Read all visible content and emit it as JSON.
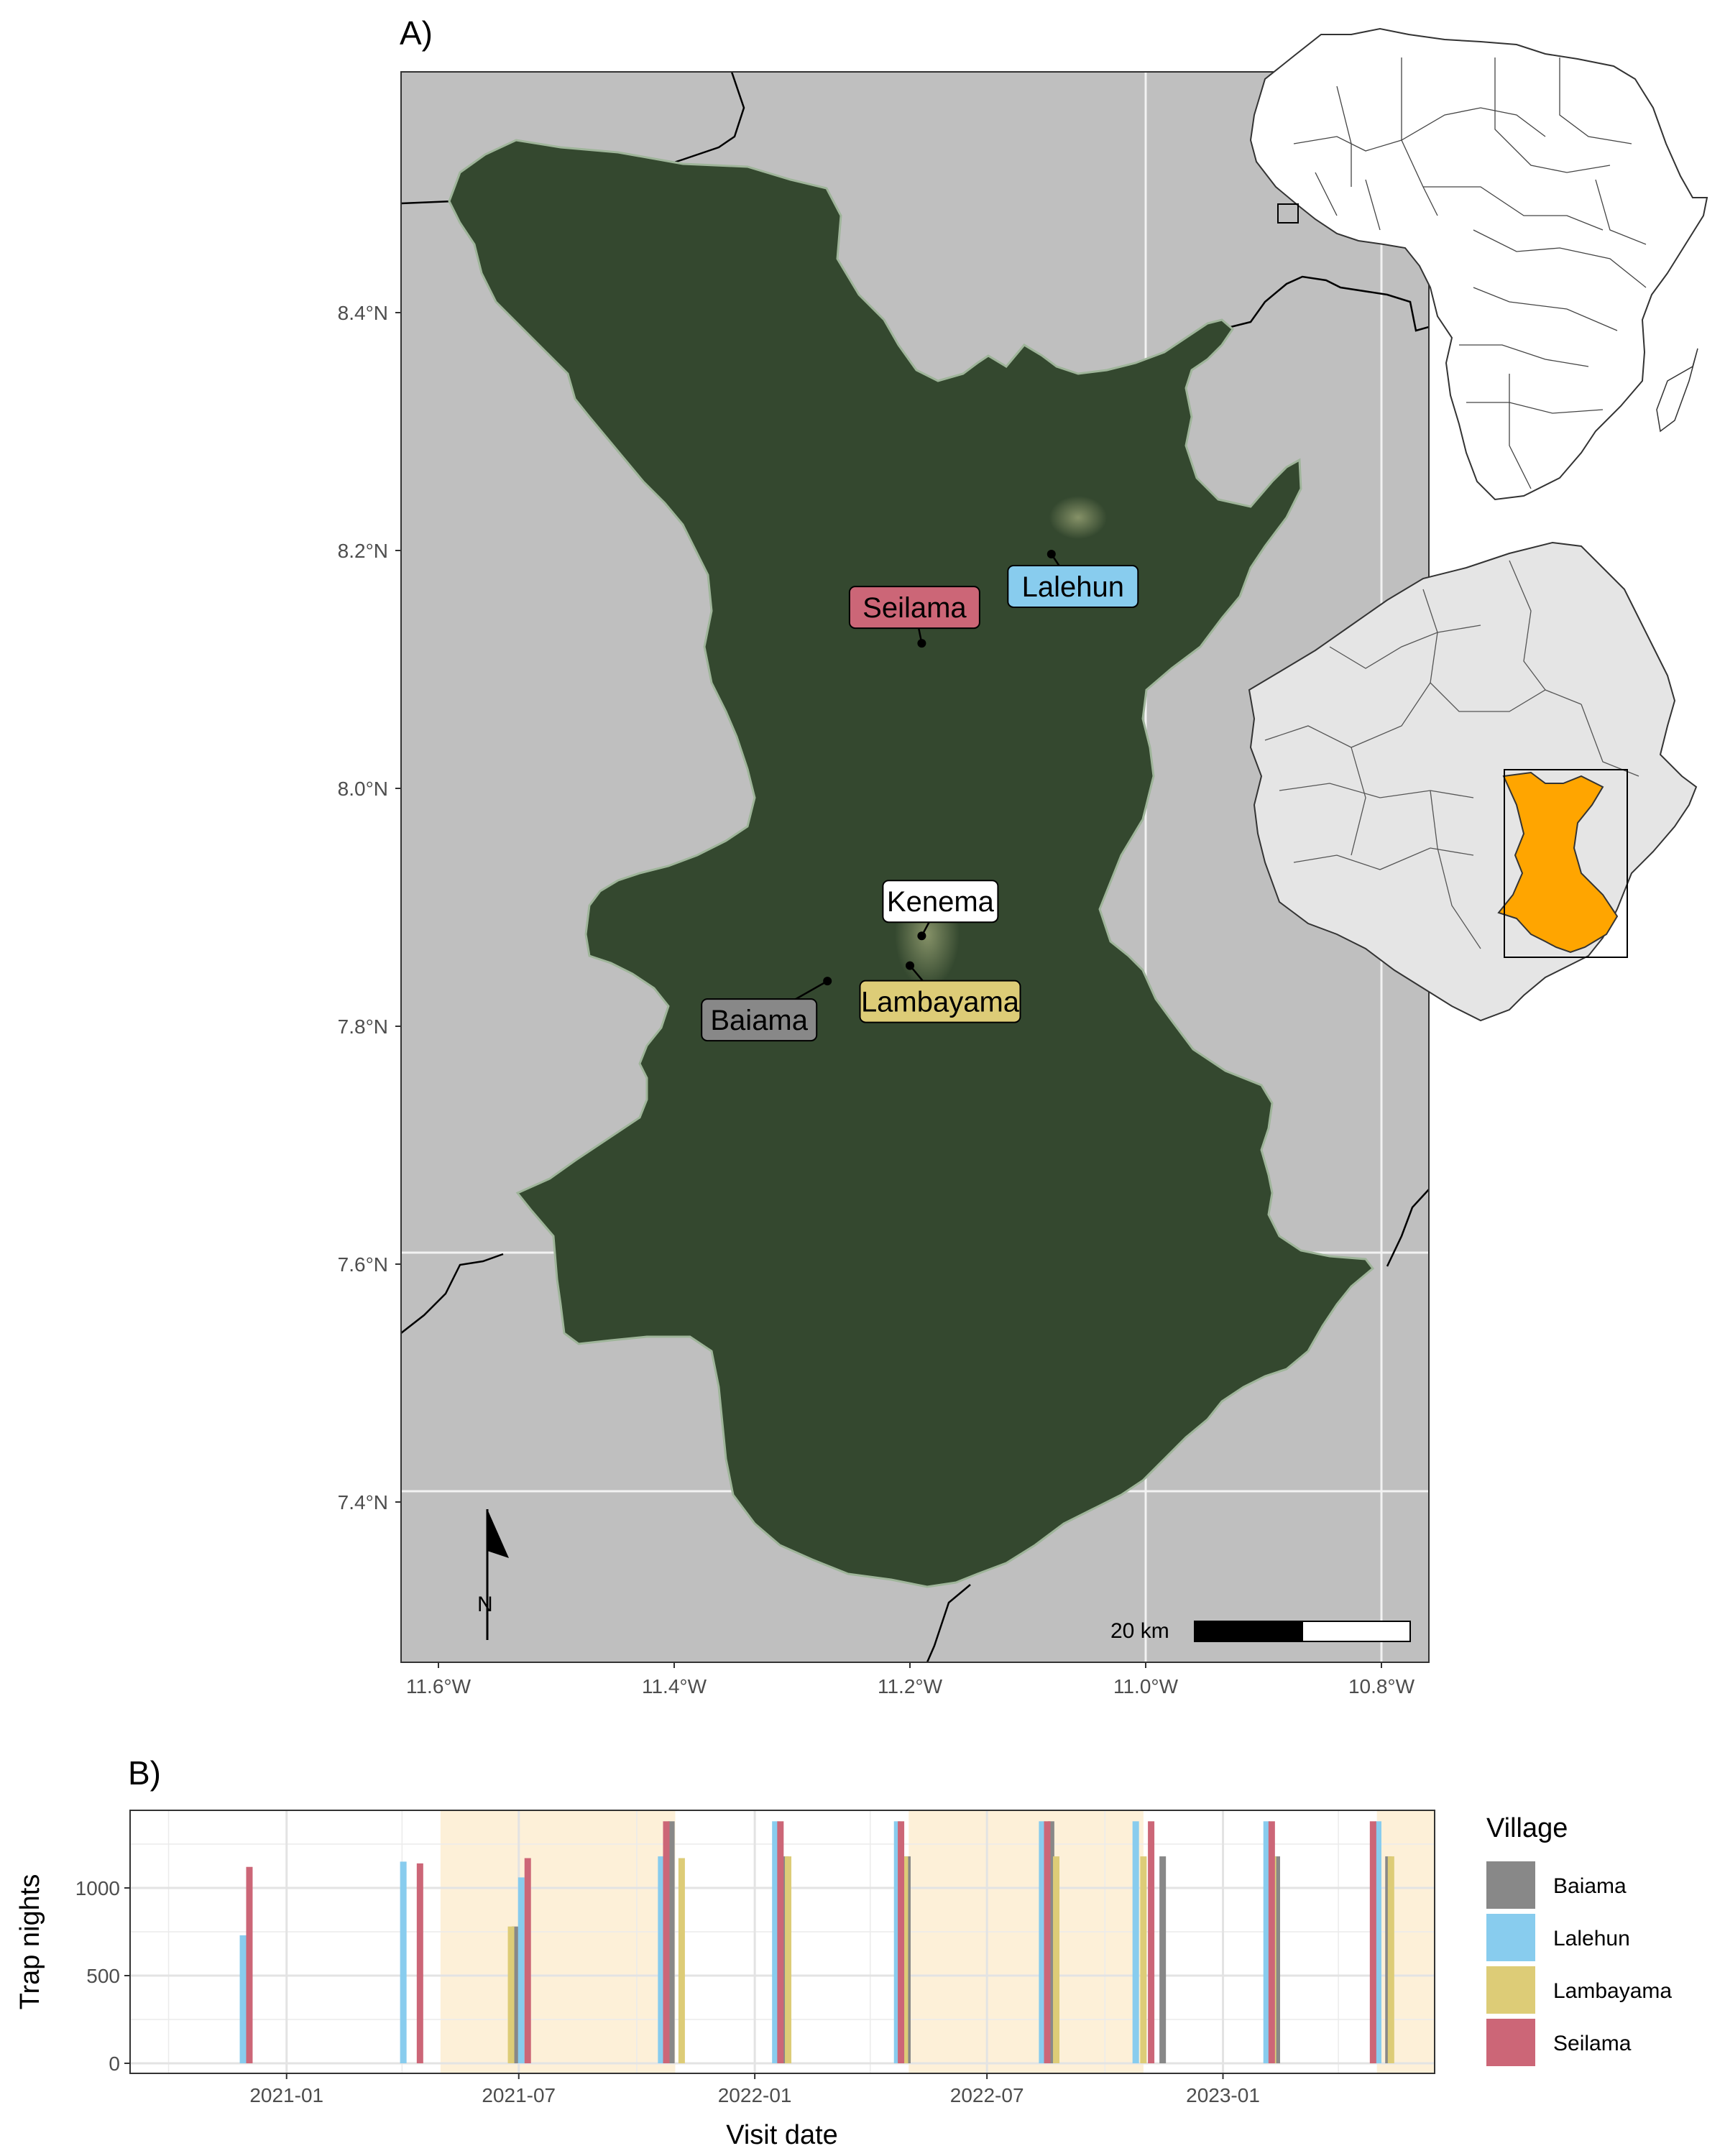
{
  "panel_a": {
    "letter": "A)",
    "lat_ticks": [
      "8.4°N",
      "8.2°N",
      "8.0°N",
      "7.8°N",
      "7.6°N",
      "7.4°N"
    ],
    "lon_ticks": [
      "11.6°W",
      "11.4°W",
      "11.2°W",
      "11.0°W",
      "10.8°W"
    ],
    "scale_label": "20 km",
    "north_label": "N",
    "villages": [
      {
        "name": "Seilama",
        "color": "#cc6677",
        "lon": -11.19,
        "lat": 8.122
      },
      {
        "name": "Lalehun",
        "color": "#88ccee",
        "lon": -11.08,
        "lat": 8.197
      },
      {
        "name": "Kenema",
        "color": "#ffffff",
        "lon": -11.19,
        "lat": 7.876
      },
      {
        "name": "Lambayama",
        "color": "#ddcc77",
        "lon": -11.2,
        "lat": 7.851
      },
      {
        "name": "Baiama",
        "color": "#888888",
        "lon": -11.27,
        "lat": 7.838
      }
    ],
    "colors": {
      "sea": "#bfbfbf",
      "district": "#34482f",
      "inset_country": "#e5e5e5",
      "inset_district": "#ffa500"
    }
  },
  "panel_b": {
    "letter": "B)",
    "x_title": "Visit date",
    "y_title": "Trap nights",
    "legend_title": "Village",
    "legend": [
      {
        "name": "Baiama",
        "color": "#888888"
      },
      {
        "name": "Lalehun",
        "color": "#88ccee"
      },
      {
        "name": "Lambayama",
        "color": "#ddcc77"
      },
      {
        "name": "Seilama",
        "color": "#cc6677"
      }
    ],
    "shade_color": "#fdf0d8"
  },
  "chart_data": {
    "type": "bar",
    "x_ticks": [
      "2021-01",
      "2021-07",
      "2022-01",
      "2022-07",
      "2023-01"
    ],
    "y_ticks": [
      "0",
      "500",
      "1000"
    ],
    "ylim": [
      0,
      1400
    ],
    "xlim": [
      "2020-09-01",
      "2023-06-15"
    ],
    "rainy_season_shading": [
      [
        "2021-05-01",
        "2021-10-31"
      ],
      [
        "2022-05-01",
        "2022-10-31"
      ],
      [
        "2023-05-01",
        "2023-06-15"
      ]
    ],
    "series": [
      {
        "name": "Baiama",
        "color": "#888888",
        "points": [
          [
            "2021-06-28",
            780
          ],
          [
            "2021-10-28",
            1380
          ],
          [
            "2022-01-25",
            1180
          ],
          [
            "2022-04-30",
            1180
          ],
          [
            "2022-08-20",
            1380
          ],
          [
            "2022-11-15",
            1180
          ],
          [
            "2023-02-12",
            1180
          ],
          [
            "2023-05-10",
            1180
          ]
        ]
      },
      {
        "name": "Lalehun",
        "color": "#88ccee",
        "points": [
          [
            "2020-11-28",
            730
          ],
          [
            "2021-04-02",
            1150
          ],
          [
            "2021-07-03",
            1060
          ],
          [
            "2021-10-20",
            1180
          ],
          [
            "2022-01-17",
            1380
          ],
          [
            "2022-04-22",
            1380
          ],
          [
            "2022-08-13",
            1380
          ],
          [
            "2022-10-25",
            1380
          ],
          [
            "2023-02-04",
            1380
          ],
          [
            "2023-05-02",
            1380
          ]
        ]
      },
      {
        "name": "Lambayama",
        "color": "#ddcc77",
        "points": [
          [
            "2021-06-25",
            780
          ],
          [
            "2021-11-05",
            1170
          ],
          [
            "2022-01-27",
            1180
          ],
          [
            "2022-04-28",
            1180
          ],
          [
            "2022-08-24",
            1180
          ],
          [
            "2022-10-31",
            1180
          ],
          [
            "2023-02-09",
            1180
          ],
          [
            "2023-05-12",
            1180
          ]
        ]
      },
      {
        "name": "Seilama",
        "color": "#cc6677",
        "points": [
          [
            "2020-12-03",
            1120
          ],
          [
            "2021-04-15",
            1140
          ],
          [
            "2021-07-08",
            1170
          ],
          [
            "2021-10-24",
            1380
          ],
          [
            "2022-01-21",
            1380
          ],
          [
            "2022-04-25",
            1380
          ],
          [
            "2022-08-17",
            1380
          ],
          [
            "2022-11-06",
            1380
          ],
          [
            "2023-02-08",
            1380
          ],
          [
            "2023-04-28",
            1380
          ]
        ]
      }
    ]
  }
}
